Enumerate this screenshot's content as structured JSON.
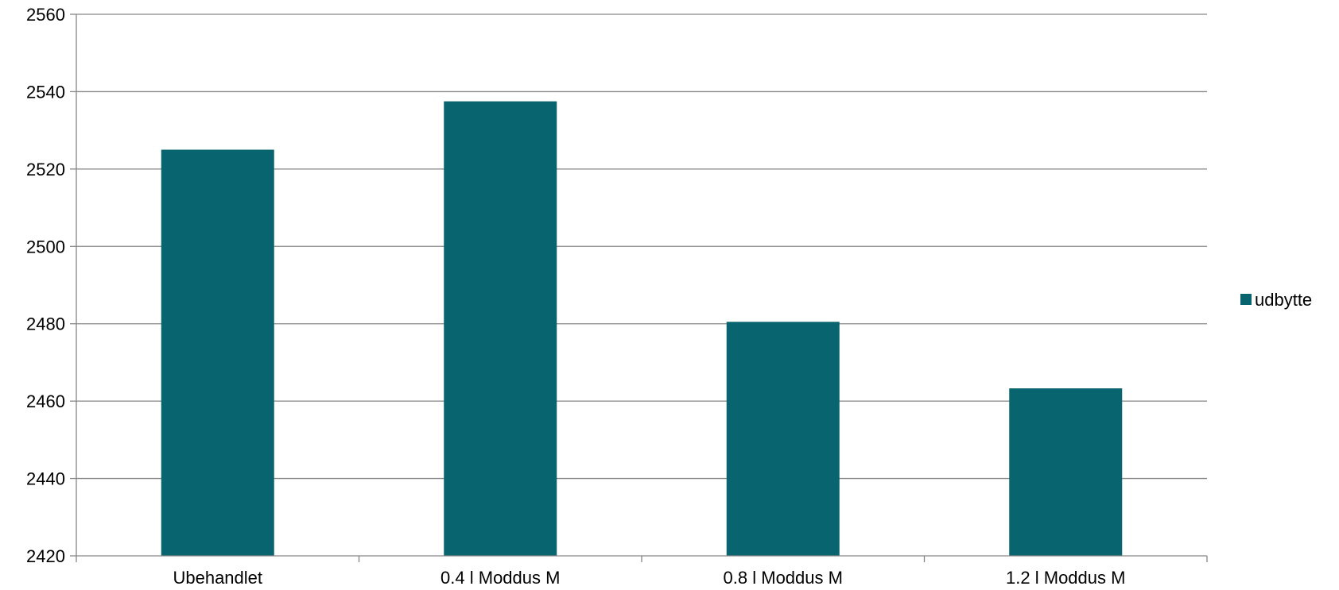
{
  "chart_data": {
    "type": "bar",
    "categories": [
      "Ubehandlet",
      "0.4 l Moddus M",
      "0.8 l Moddus M",
      "1.2 l Moddus M"
    ],
    "series": [
      {
        "name": "udbytte",
        "values": [
          2525,
          2537.5,
          2480.5,
          2463.3
        ],
        "color": "#08646e"
      }
    ],
    "ylim": [
      2420,
      2560
    ],
    "yticks": [
      2420,
      2440,
      2460,
      2480,
      2500,
      2520,
      2540,
      2560
    ],
    "grid": true,
    "legend_position": "right"
  }
}
